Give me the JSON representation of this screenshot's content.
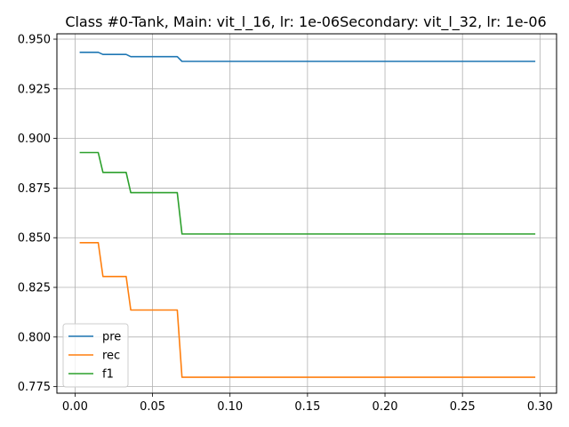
{
  "chart_data": {
    "type": "line",
    "title": "Class #0-Tank, Main: vit_l_16, lr: 1e-06Secondary: vit_l_32, lr: 1e-06",
    "xlabel": "",
    "ylabel": "",
    "xlim": [
      -0.0117,
      0.3107
    ],
    "ylim": [
      0.7717,
      0.9527
    ],
    "xticks": [
      0.0,
      0.05,
      0.1,
      0.15,
      0.2,
      0.25,
      0.3
    ],
    "xtick_labels": [
      "0.00",
      "0.05",
      "0.10",
      "0.15",
      "0.20",
      "0.25",
      "0.30"
    ],
    "yticks": [
      0.775,
      0.8,
      0.825,
      0.85,
      0.875,
      0.9,
      0.925,
      0.95
    ],
    "ytick_labels": [
      "0.775",
      "0.800",
      "0.825",
      "0.850",
      "0.875",
      "0.900",
      "0.925",
      "0.950"
    ],
    "grid": true,
    "legend_position": "bottom-left",
    "series": [
      {
        "name": "pre",
        "color": "#1f77b4",
        "x": [
          0.003,
          0.015,
          0.018,
          0.033,
          0.036,
          0.066,
          0.069,
          0.297
        ],
        "y": [
          0.9434,
          0.9434,
          0.9423,
          0.9423,
          0.9412,
          0.9412,
          0.9388,
          0.9388
        ]
      },
      {
        "name": "rec",
        "color": "#ff7f0e",
        "x": [
          0.003,
          0.015,
          0.018,
          0.033,
          0.036,
          0.066,
          0.069,
          0.297
        ],
        "y": [
          0.8475,
          0.8475,
          0.8305,
          0.8305,
          0.8136,
          0.8136,
          0.7797,
          0.7797
        ]
      },
      {
        "name": "f1",
        "color": "#2ca02c",
        "x": [
          0.003,
          0.015,
          0.018,
          0.033,
          0.036,
          0.066,
          0.069,
          0.297
        ],
        "y": [
          0.8929,
          0.8929,
          0.8829,
          0.8829,
          0.8727,
          0.8727,
          0.8519,
          0.8519
        ]
      }
    ]
  }
}
